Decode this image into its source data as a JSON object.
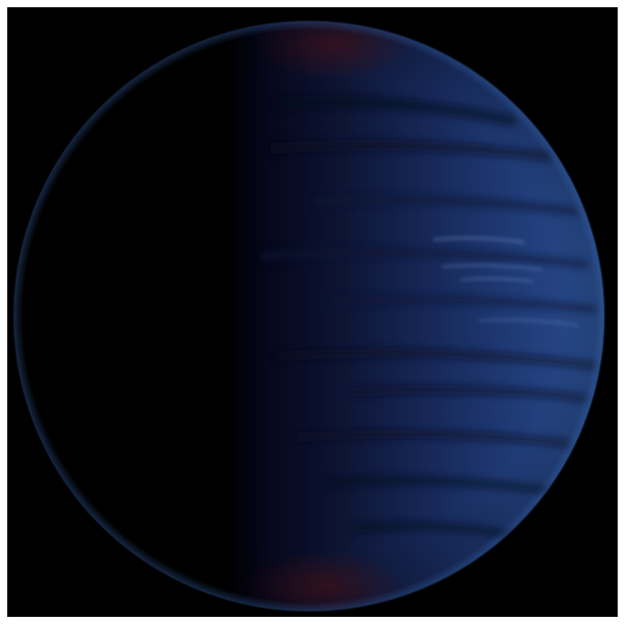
{
  "image": {
    "subject": "planet-crescent",
    "colors": {
      "space": "#000000",
      "border": "#ffffff",
      "planet_lit": "#2a4f8e",
      "planet_mid": "#1a2f63",
      "planet_dark": "#0a0d24",
      "terminator_red": "#5a1418",
      "haze_blue": "#3a6ab8"
    }
  }
}
